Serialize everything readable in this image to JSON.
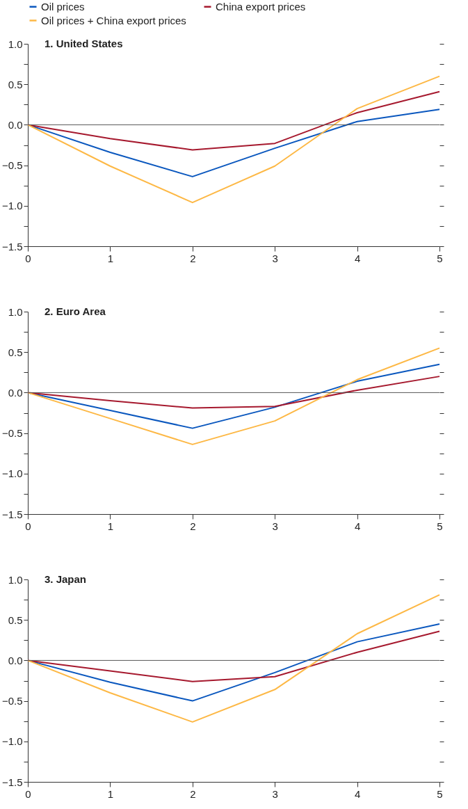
{
  "chart_data": [
    {
      "type": "line",
      "title": "1. United States",
      "x": [
        0,
        1,
        2,
        3,
        4,
        5
      ],
      "xlim": [
        0,
        5
      ],
      "xticks": [
        0,
        1,
        2,
        3,
        4,
        5
      ],
      "ylim": [
        -1.5,
        1.0
      ],
      "yticks": [
        {
          "value": -1.5,
          "label": "−1.5"
        },
        {
          "value": -1.25,
          "label": null
        },
        {
          "value": -1.0,
          "label": "−1.0"
        },
        {
          "value": -0.75,
          "label": null
        },
        {
          "value": -0.5,
          "label": "−0.5"
        },
        {
          "value": -0.25,
          "label": null
        },
        {
          "value": 0,
          "label": "0.0"
        },
        {
          "value": 0.25,
          "label": null
        },
        {
          "value": 0.5,
          "label": "0.5"
        },
        {
          "value": 0.75,
          "label": null
        },
        {
          "value": 1.0,
          "label": "1.0"
        }
      ],
      "legend": "top",
      "ref_lines": [
        {
          "axis": "y",
          "value": 0,
          "color": "#555555"
        }
      ],
      "series": [
        {
          "name": "Oil prices",
          "color": "#0a57be",
          "values": [
            0,
            -0.34,
            -0.64,
            -0.29,
            0.04,
            0.19
          ]
        },
        {
          "name": "China export prices",
          "color": "#a6192e",
          "values": [
            0,
            -0.17,
            -0.31,
            -0.23,
            0.15,
            0.41
          ]
        },
        {
          "name": "Oil prices + China export prices",
          "color": "#fdb845",
          "values": [
            0,
            -0.51,
            -0.96,
            -0.51,
            0.2,
            0.6
          ]
        }
      ]
    },
    {
      "type": "line",
      "title": "2. Euro Area",
      "x": [
        0,
        1,
        2,
        3,
        4,
        5
      ],
      "xlim": [
        0,
        5
      ],
      "xticks": [
        0,
        1,
        2,
        3,
        4,
        5
      ],
      "ylim": [
        -1.5,
        1.0
      ],
      "yticks": [
        {
          "value": -1.5,
          "label": "−1.5"
        },
        {
          "value": -1.25,
          "label": null
        },
        {
          "value": -1.0,
          "label": "−1.0"
        },
        {
          "value": -0.75,
          "label": null
        },
        {
          "value": -0.5,
          "label": "−0.5"
        },
        {
          "value": -0.25,
          "label": null
        },
        {
          "value": 0,
          "label": "0.0"
        },
        {
          "value": 0.25,
          "label": null
        },
        {
          "value": 0.5,
          "label": "0.5"
        },
        {
          "value": 0.75,
          "label": null
        },
        {
          "value": 1.0,
          "label": "1.0"
        }
      ],
      "ref_lines": [
        {
          "axis": "y",
          "value": 0,
          "color": "#555555"
        }
      ],
      "series": [
        {
          "color": "#0a57be",
          "values": [
            0,
            -0.22,
            -0.44,
            -0.18,
            0.14,
            0.35
          ]
        },
        {
          "color": "#a6192e",
          "values": [
            0,
            -0.1,
            -0.19,
            -0.17,
            0.03,
            0.2
          ]
        },
        {
          "color": "#fdb845",
          "values": [
            0,
            -0.32,
            -0.64,
            -0.35,
            0.16,
            0.55
          ]
        }
      ]
    },
    {
      "type": "line",
      "title": "3. Japan",
      "x": [
        0,
        1,
        2,
        3,
        4,
        5
      ],
      "xlim": [
        0,
        5
      ],
      "xticks": [
        0,
        1,
        2,
        3,
        4,
        5
      ],
      "ylim": [
        -1.5,
        1.0
      ],
      "yticks": [
        {
          "value": -1.5,
          "label": "−1.5"
        },
        {
          "value": -1.25,
          "label": null
        },
        {
          "value": -1.0,
          "label": "−1.0"
        },
        {
          "value": -0.75,
          "label": null
        },
        {
          "value": -0.5,
          "label": "−0.5"
        },
        {
          "value": -0.25,
          "label": null
        },
        {
          "value": 0,
          "label": "0.0"
        },
        {
          "value": 0.25,
          "label": null
        },
        {
          "value": 0.5,
          "label": "0.5"
        },
        {
          "value": 0.75,
          "label": null
        },
        {
          "value": 1.0,
          "label": "1.0"
        }
      ],
      "ref_lines": [
        {
          "axis": "y",
          "value": 0,
          "color": "#555555"
        }
      ],
      "series": [
        {
          "color": "#0a57be",
          "values": [
            0,
            -0.27,
            -0.5,
            -0.15,
            0.23,
            0.45
          ]
        },
        {
          "color": "#a6192e",
          "values": [
            0,
            -0.13,
            -0.26,
            -0.2,
            0.1,
            0.36
          ]
        },
        {
          "color": "#fdb845",
          "values": [
            0,
            -0.4,
            -0.76,
            -0.36,
            0.33,
            0.81
          ]
        }
      ]
    }
  ]
}
